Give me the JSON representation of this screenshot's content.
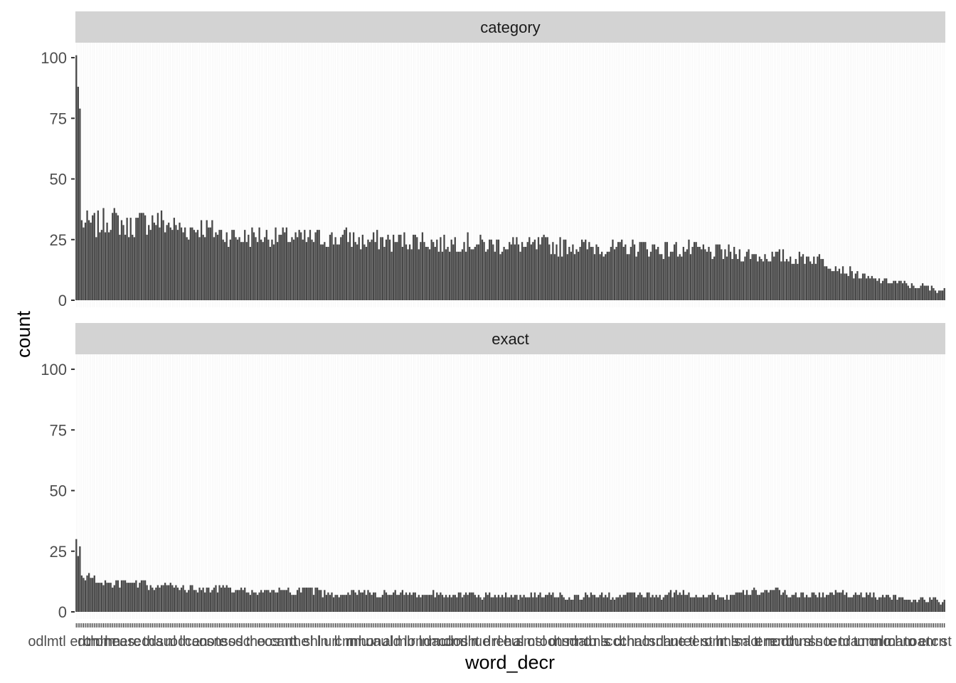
{
  "chart_data": {
    "type": "bar",
    "xlabel": "word_decr",
    "ylabel": "count",
    "ylim": [
      0,
      105
    ],
    "yticks": [
      0,
      25,
      50,
      75,
      100
    ],
    "grid": true,
    "theme": "minimal, faceted vertically",
    "bar_color": "#474747",
    "strip_color": "#d3d3d3",
    "visible_x_tick_labels": [
      "odlmtl",
      "rs",
      "mllu",
      "st"
    ],
    "n_categories": 480,
    "panels": [
      {
        "name": "category",
        "values_sampled": [
          101,
          88,
          79,
          32,
          31,
          34,
          30,
          32,
          33,
          31,
          29,
          30,
          28,
          27,
          26,
          27,
          26,
          26,
          25,
          26,
          25,
          26,
          24,
          25,
          24,
          25,
          25,
          23,
          24,
          24,
          23,
          23,
          23,
          22,
          23,
          22,
          23,
          22,
          22,
          21,
          22,
          22,
          21,
          21,
          21,
          20,
          20,
          19,
          19,
          18,
          18,
          17,
          18,
          16,
          13,
          11,
          9,
          8,
          7,
          6,
          5,
          4
        ]
      },
      {
        "name": "exact",
        "values_sampled": [
          30,
          23,
          27,
          15,
          13,
          11,
          12,
          11,
          10,
          11,
          10,
          9,
          10,
          9,
          9,
          8,
          9,
          8,
          9,
          8,
          7,
          8,
          8,
          7,
          8,
          7,
          7,
          8,
          7,
          7,
          6,
          7,
          7,
          6,
          7,
          7,
          6,
          7,
          7,
          6,
          7,
          7,
          6,
          8,
          7,
          7,
          6,
          7,
          8,
          9,
          8,
          7,
          7,
          7,
          8,
          7,
          7,
          6,
          6,
          5,
          5,
          4
        ]
      }
    ]
  }
}
